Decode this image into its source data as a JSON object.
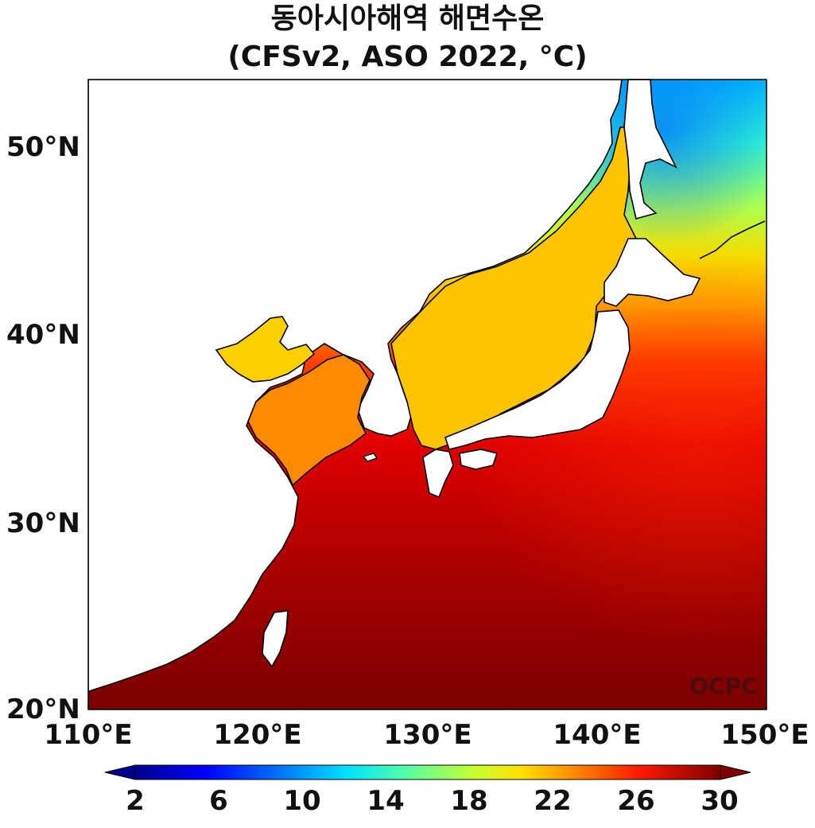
{
  "title_line1": "동아시아해역 해면수온",
  "title_line2": "(CFSv2, ASO 2022, °C)",
  "watermark": "OCPC",
  "chart_data": {
    "type": "heatmap",
    "map_region": "East Asian seas",
    "variable": "sea surface temperature",
    "unit": "°C",
    "lon_range": [
      110,
      150
    ],
    "lat_range": [
      20,
      53.5
    ],
    "x_ticks": [
      {
        "value": 110,
        "label": "110°E"
      },
      {
        "value": 120,
        "label": "120°E"
      },
      {
        "value": 130,
        "label": "130°E"
      },
      {
        "value": 140,
        "label": "140°E"
      },
      {
        "value": 150,
        "label": "150°E"
      }
    ],
    "y_ticks": [
      {
        "value": 20,
        "label": "20°N"
      },
      {
        "value": 30,
        "label": "30°N"
      },
      {
        "value": 40,
        "label": "40°N"
      },
      {
        "value": 50,
        "label": "50°N"
      }
    ],
    "colorbar": {
      "range": [
        2,
        30
      ],
      "ticks": [
        "2",
        "6",
        "10",
        "14",
        "18",
        "22",
        "26",
        "30"
      ],
      "extend": "both",
      "colormap": "jet"
    },
    "approx_sst_by_latitude": [
      {
        "lat": 22,
        "sst": 29.5
      },
      {
        "lat": 26,
        "sst": 28.5
      },
      {
        "lat": 30,
        "sst": 27.5
      },
      {
        "lat": 34,
        "sst": 26
      },
      {
        "lat": 38,
        "sst": 23
      },
      {
        "lat": 42,
        "sst": 20
      },
      {
        "lat": 46,
        "sst": 15
      },
      {
        "lat": 50,
        "sst": 11
      }
    ]
  },
  "colors": {
    "land": "#ffffff",
    "coastline": "#000000",
    "sst_warm": "#7f0000",
    "sst_cold": "#00a8ff"
  }
}
